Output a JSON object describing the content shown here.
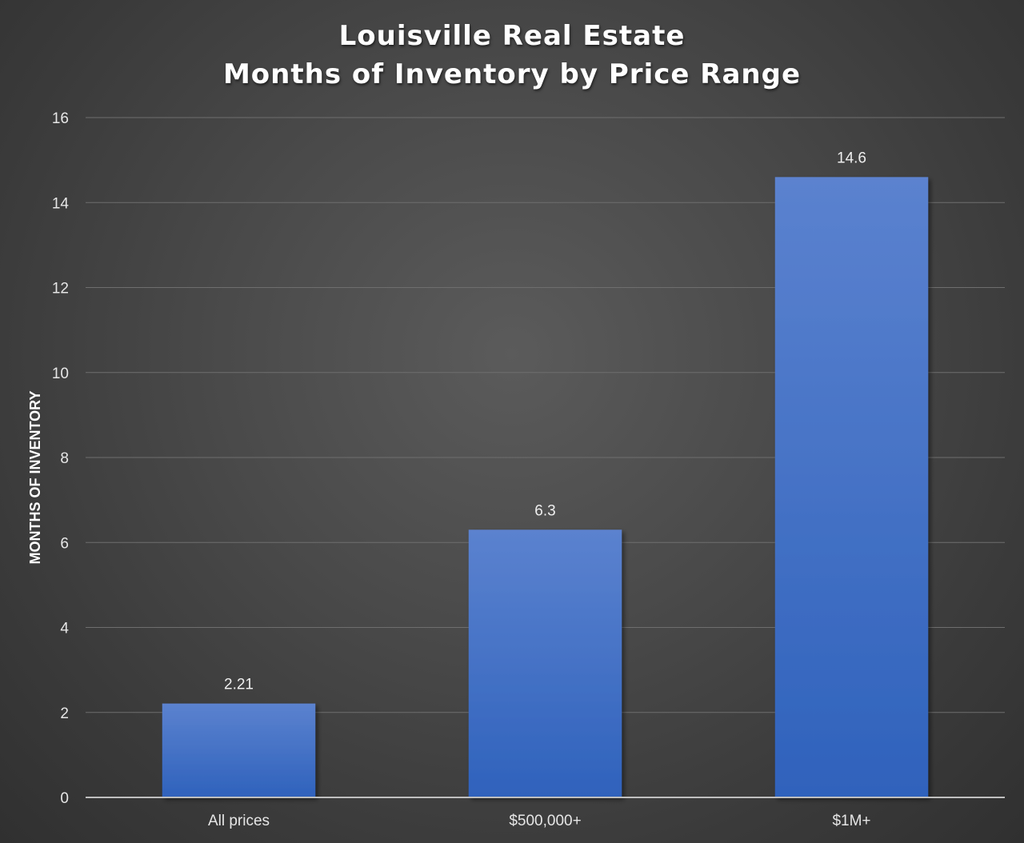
{
  "title_lines": [
    "Louisville Real Estate",
    "Months of Inventory by Price Range"
  ],
  "chart_data": {
    "type": "bar",
    "title": "Louisville Real Estate Months of Inventory by Price Range",
    "categories": [
      "All prices",
      "$500,000+",
      "$1M+"
    ],
    "values": [
      2.21,
      6.3,
      14.6
    ],
    "data_labels": [
      "2.21",
      "6.3",
      "14.6"
    ],
    "xlabel": "",
    "ylabel": "MONTHS OF INVENTORY",
    "ylim": [
      0,
      16
    ],
    "yticks": [
      0,
      2,
      4,
      6,
      8,
      10,
      12,
      14,
      16
    ],
    "grid": true,
    "legend": "none",
    "bar_color_top": "#5b82cf",
    "bar_color_bottom": "#2f62bc",
    "background_color": "#4a4a4a"
  }
}
